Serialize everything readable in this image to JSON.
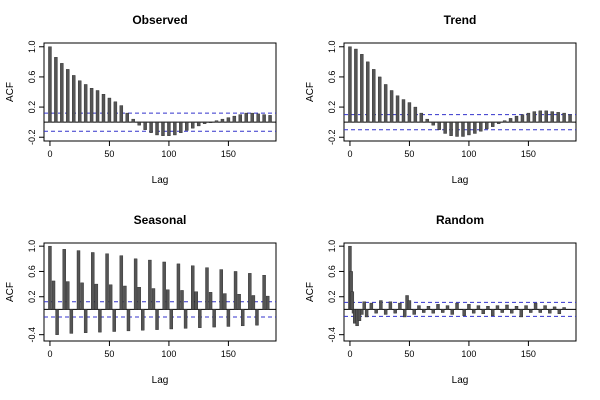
{
  "chart_data": [
    {
      "type": "bar",
      "title": "Observed",
      "xlabel": "Lag",
      "ylabel": "ACF",
      "xlim": [
        -5,
        190
      ],
      "ylim": [
        -0.25,
        1.05
      ],
      "x_ticks": [
        0,
        50,
        100,
        150
      ],
      "y_ticks": [
        -0.2,
        0.2,
        0.6,
        1.0
      ],
      "confidence_band": [
        0.12,
        -0.12
      ],
      "x": [
        0,
        5,
        10,
        15,
        20,
        25,
        30,
        35,
        40,
        45,
        50,
        55,
        60,
        65,
        70,
        75,
        80,
        85,
        90,
        95,
        100,
        105,
        110,
        115,
        120,
        125,
        130,
        135,
        140,
        145,
        150,
        155,
        160,
        165,
        170,
        175,
        180,
        185
      ],
      "values": [
        1.0,
        0.86,
        0.78,
        0.7,
        0.62,
        0.55,
        0.5,
        0.45,
        0.42,
        0.37,
        0.32,
        0.27,
        0.22,
        0.12,
        0.04,
        -0.04,
        -0.1,
        -0.14,
        -0.17,
        -0.18,
        -0.18,
        -0.17,
        -0.14,
        -0.11,
        -0.08,
        -0.05,
        -0.02,
        0.0,
        0.02,
        0.04,
        0.06,
        0.08,
        0.1,
        0.12,
        0.12,
        0.11,
        0.1,
        0.09
      ]
    },
    {
      "type": "bar",
      "title": "Trend",
      "xlabel": "Lag",
      "ylabel": "ACF",
      "xlim": [
        -5,
        190
      ],
      "ylim": [
        -0.25,
        1.05
      ],
      "x_ticks": [
        0,
        50,
        100,
        150
      ],
      "y_ticks": [
        -0.2,
        0.2,
        0.6,
        1.0
      ],
      "confidence_band": [
        0.1,
        -0.1
      ],
      "x": [
        0,
        5,
        10,
        15,
        20,
        25,
        30,
        35,
        40,
        45,
        50,
        55,
        60,
        65,
        70,
        75,
        80,
        85,
        90,
        95,
        100,
        105,
        110,
        115,
        120,
        125,
        130,
        135,
        140,
        145,
        150,
        155,
        160,
        165,
        170,
        175,
        180,
        185
      ],
      "values": [
        1.0,
        0.97,
        0.9,
        0.8,
        0.7,
        0.6,
        0.5,
        0.42,
        0.35,
        0.3,
        0.26,
        0.2,
        0.12,
        0.04,
        -0.04,
        -0.1,
        -0.15,
        -0.18,
        -0.19,
        -0.19,
        -0.17,
        -0.15,
        -0.12,
        -0.09,
        -0.06,
        -0.02,
        0.02,
        0.05,
        0.08,
        0.1,
        0.12,
        0.14,
        0.15,
        0.15,
        0.14,
        0.13,
        0.12,
        0.1
      ]
    },
    {
      "type": "bar",
      "title": "Seasonal",
      "xlabel": "Lag",
      "ylabel": "ACF",
      "xlim": [
        -5,
        190
      ],
      "ylim": [
        -0.5,
        1.05
      ],
      "x_ticks": [
        0,
        50,
        100,
        150
      ],
      "y_ticks": [
        -0.4,
        0.2,
        0.6,
        1.0
      ],
      "confidence_band": [
        0.12,
        -0.12
      ],
      "x": [
        0,
        3,
        6,
        12,
        15,
        18,
        24,
        27,
        30,
        36,
        39,
        42,
        48,
        51,
        54,
        60,
        63,
        66,
        72,
        75,
        78,
        84,
        87,
        90,
        96,
        99,
        102,
        108,
        111,
        114,
        120,
        123,
        126,
        132,
        135,
        138,
        144,
        147,
        150,
        156,
        159,
        162,
        168,
        171,
        174,
        180,
        183
      ],
      "values": [
        1.0,
        0.45,
        -0.4,
        0.95,
        0.44,
        -0.38,
        0.93,
        0.42,
        -0.37,
        0.9,
        0.4,
        -0.36,
        0.88,
        0.39,
        -0.35,
        0.85,
        0.37,
        -0.34,
        0.8,
        0.35,
        -0.33,
        0.78,
        0.33,
        -0.32,
        0.75,
        0.31,
        -0.31,
        0.72,
        0.3,
        -0.3,
        0.69,
        0.28,
        -0.29,
        0.66,
        0.27,
        -0.28,
        0.63,
        0.25,
        -0.27,
        0.6,
        0.24,
        -0.26,
        0.57,
        0.22,
        -0.25,
        0.54,
        0.21
      ]
    },
    {
      "type": "bar",
      "title": "Random",
      "xlabel": "Lag",
      "ylabel": "ACF",
      "xlim": [
        -5,
        190
      ],
      "ylim": [
        -0.5,
        1.05
      ],
      "x_ticks": [
        0,
        50,
        100,
        150
      ],
      "y_ticks": [
        -0.4,
        0.2,
        0.6,
        1.0
      ],
      "confidence_band": [
        0.11,
        -0.11
      ],
      "x": [
        0,
        1,
        2,
        3,
        4,
        6,
        8,
        10,
        12,
        14,
        18,
        22,
        26,
        30,
        34,
        38,
        42,
        46,
        48,
        50,
        54,
        58,
        62,
        66,
        70,
        74,
        78,
        82,
        86,
        90,
        96,
        100,
        104,
        108,
        112,
        116,
        120,
        124,
        128,
        132,
        136,
        140,
        144,
        148,
        152,
        156,
        160,
        164,
        168,
        172,
        176,
        180
      ],
      "values": [
        1.0,
        0.6,
        0.28,
        -0.06,
        -0.22,
        -0.26,
        -0.18,
        -0.08,
        0.12,
        -0.12,
        0.1,
        -0.06,
        0.14,
        -0.08,
        0.12,
        -0.06,
        0.1,
        -0.12,
        0.22,
        0.14,
        -0.08,
        0.06,
        -0.05,
        0.05,
        -0.06,
        0.08,
        -0.05,
        0.06,
        -0.08,
        0.1,
        -0.1,
        0.08,
        -0.06,
        0.06,
        -0.07,
        0.05,
        -0.1,
        0.06,
        -0.05,
        0.07,
        -0.06,
        0.05,
        -0.12,
        0.06,
        -0.05,
        0.1,
        -0.05,
        0.06,
        -0.06,
        0.04,
        -0.07,
        0.03
      ]
    }
  ]
}
